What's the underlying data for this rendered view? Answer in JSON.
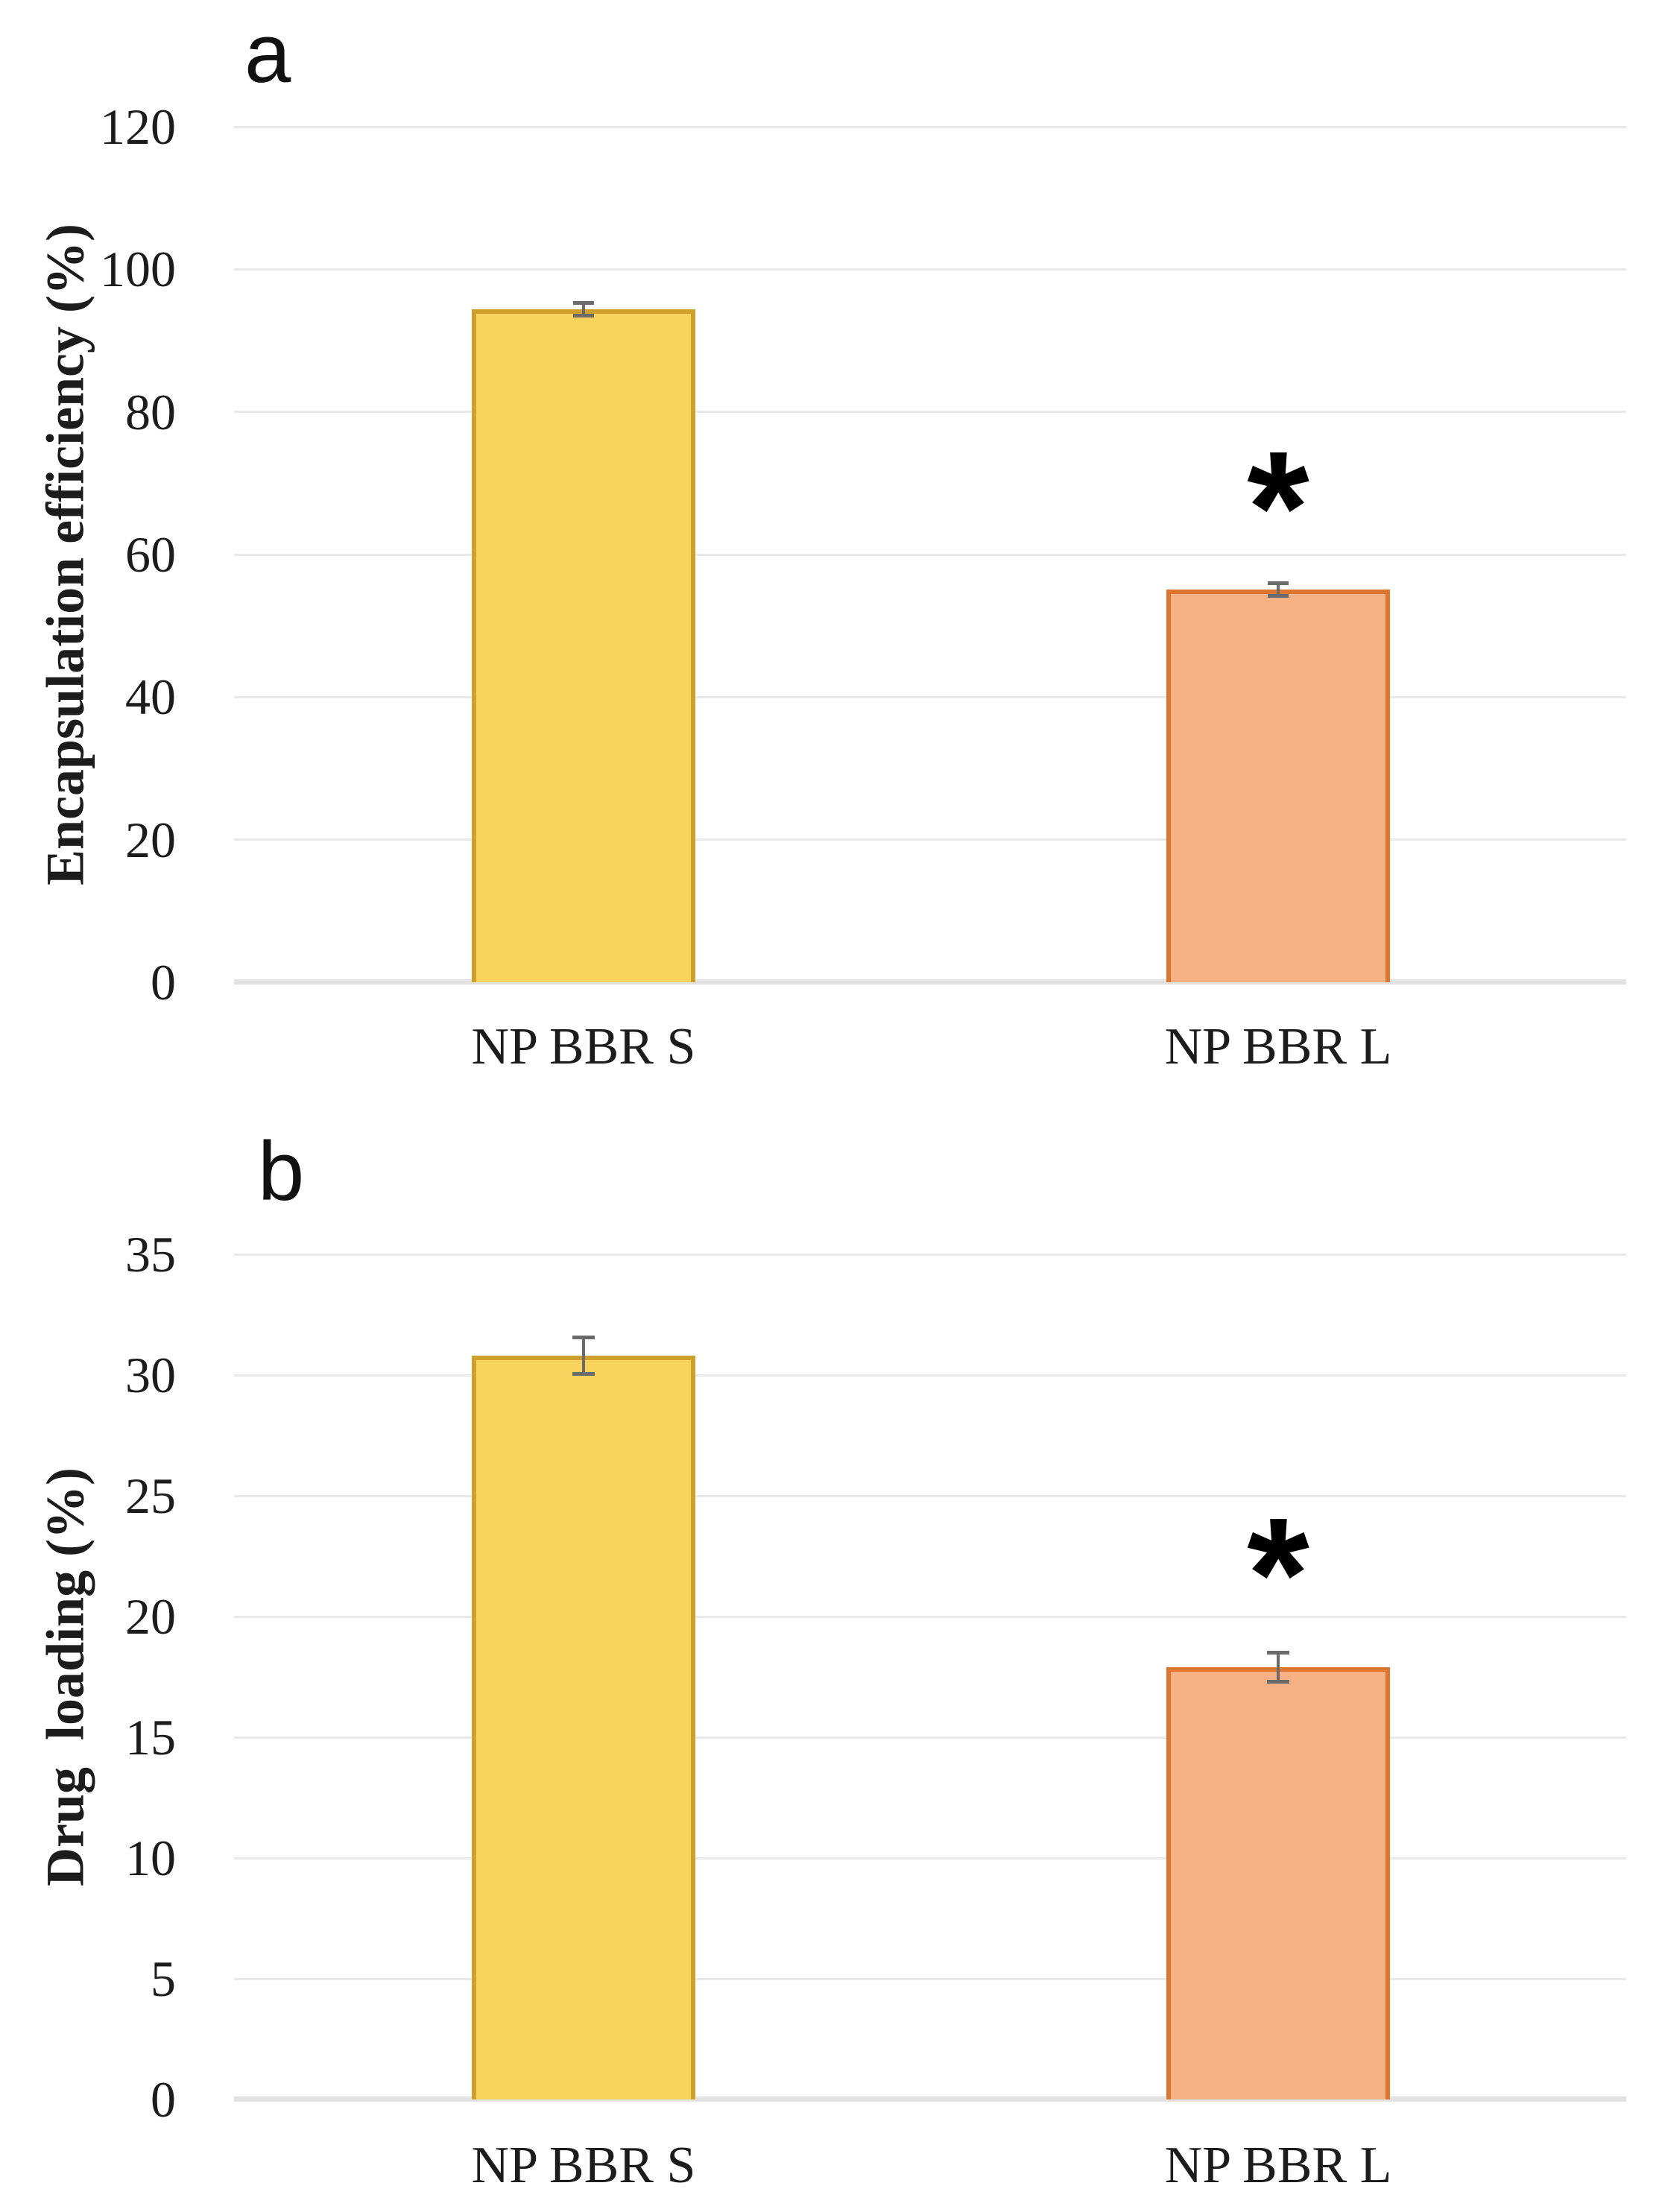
{
  "figure_background": "#ffffff",
  "style": {
    "gridline_color": "#e9e9e9",
    "baseline_color": "#e2e2e2",
    "error_bar_color": "#6b6b6b",
    "text_color": "#1c1c1c",
    "yellow_fill": "#fad35e",
    "yellow_border": "#cfa02b",
    "orange_fill": "#f5b183",
    "orange_border": "#df7630"
  },
  "chart_data": [
    {
      "type": "bar",
      "panel_label": "a",
      "title": "",
      "xlabel": "",
      "ylabel": "Encapsulation efficiency (%)",
      "categories": [
        "NP BBR S",
        "NP BBR L"
      ],
      "values": [
        94.4,
        55.1
      ],
      "errors": [
        0.9,
        0.9
      ],
      "annotations": [
        "",
        "*"
      ],
      "annotation_y": [
        null,
        68.5
      ],
      "ylim": [
        0,
        120
      ],
      "ystep": 20,
      "tick_labels": [
        "0",
        "20",
        "40",
        "60",
        "80",
        "100",
        "120"
      ],
      "bar_fill": [
        "#fad35e",
        "#f5b183"
      ],
      "bar_border": [
        "#cfa02b",
        "#df7630"
      ],
      "grid": "on",
      "legend": "none"
    },
    {
      "type": "bar",
      "panel_label": "b",
      "title": "",
      "xlabel": "",
      "ylabel": "Drug  loading (%)",
      "categories": [
        "NP BBR S",
        "NP BBR L"
      ],
      "values": [
        30.8,
        17.9
      ],
      "errors": [
        0.75,
        0.6
      ],
      "annotations": [
        "",
        "*"
      ],
      "annotation_y": [
        null,
        22.3
      ],
      "ylim": [
        0,
        35
      ],
      "ystep": 5,
      "tick_labels": [
        "0",
        "5",
        "10",
        "15",
        "20",
        "25",
        "30",
        "35"
      ],
      "bar_fill": [
        "#fad35e",
        "#f5b183"
      ],
      "bar_border": [
        "#cfa02b",
        "#df7630"
      ],
      "grid": "on",
      "legend": "none"
    }
  ]
}
